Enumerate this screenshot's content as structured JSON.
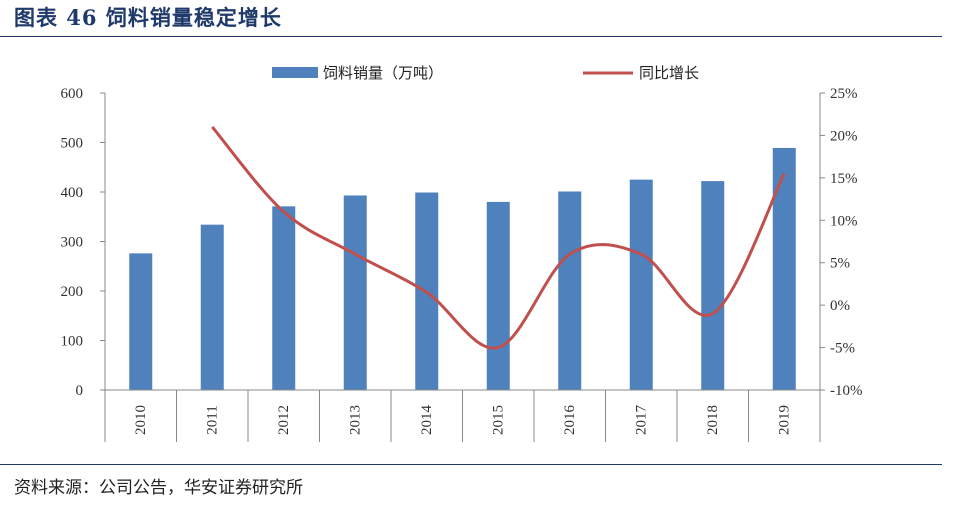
{
  "header": {
    "title": "图表 46 饲料销量稳定增长"
  },
  "footer": {
    "source": "资料来源：公司公告，华安证券研究所"
  },
  "colors": {
    "bar": "#4f81bd",
    "line": "#c0504d",
    "title": "#1f3a6a",
    "axis": "#888888"
  },
  "chart_data": {
    "type": "bar+line",
    "title": "饲料销量稳定增长",
    "categories": [
      "2010",
      "2011",
      "2012",
      "2013",
      "2014",
      "2015",
      "2016",
      "2017",
      "2018",
      "2019"
    ],
    "series": [
      {
        "name": "饲料销量（万吨）",
        "type": "bar",
        "axis": "left",
        "values": [
          276,
          334,
          371,
          393,
          399,
          380,
          401,
          425,
          422,
          489
        ]
      },
      {
        "name": "同比增长",
        "type": "line",
        "axis": "right",
        "values": [
          null,
          21.0,
          11.0,
          6.0,
          1.5,
          -5.0,
          6.0,
          6.0,
          -1.0,
          15.5
        ]
      }
    ],
    "left_axis": {
      "min": 0,
      "max": 600,
      "step": 100,
      "tick_labels": [
        "0",
        "100",
        "200",
        "300",
        "400",
        "500",
        "600"
      ]
    },
    "right_axis": {
      "min": -10,
      "max": 25,
      "step": 5,
      "tick_labels": [
        "-10%",
        "-5%",
        "0%",
        "5%",
        "10%",
        "15%",
        "20%",
        "25%"
      ]
    },
    "legend": {
      "position": "top"
    },
    "grid": false
  }
}
